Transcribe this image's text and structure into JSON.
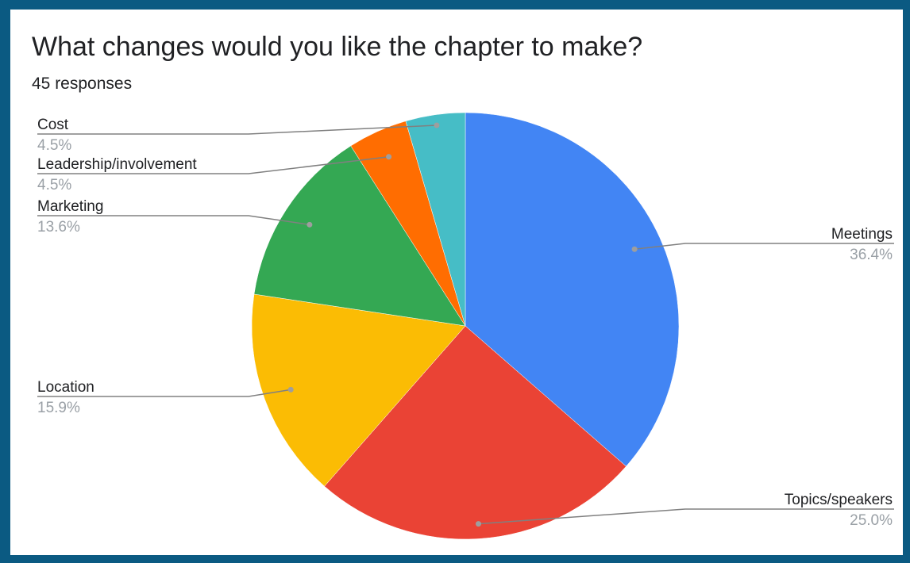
{
  "chart_data": {
    "type": "pie",
    "title": "What changes would you like the chapter to make?",
    "subtitle": "45 responses",
    "slices": [
      {
        "label": "Meetings",
        "value": 36.4,
        "value_label": "36.4%",
        "color": "#4285f4"
      },
      {
        "label": "Topics/speakers",
        "value": 25.0,
        "value_label": "25.0%",
        "color": "#ea4335"
      },
      {
        "label": "Location",
        "value": 15.9,
        "value_label": "15.9%",
        "color": "#fbbc04"
      },
      {
        "label": "Marketing",
        "value": 13.6,
        "value_label": "13.6%",
        "color": "#34a853"
      },
      {
        "label": "Leadership/involvement",
        "value": 4.5,
        "value_label": "4.5%",
        "color": "#ff6d01"
      },
      {
        "label": "Cost",
        "value": 4.5,
        "value_label": "4.5%",
        "color": "#46bdc6"
      }
    ],
    "start_angle": "12 o'clock",
    "direction": "clockwise",
    "label_style": "leader-lines"
  },
  "colors": {
    "frame": "#0b5a82",
    "background": "#ffffff",
    "leader_line": "#808080"
  }
}
